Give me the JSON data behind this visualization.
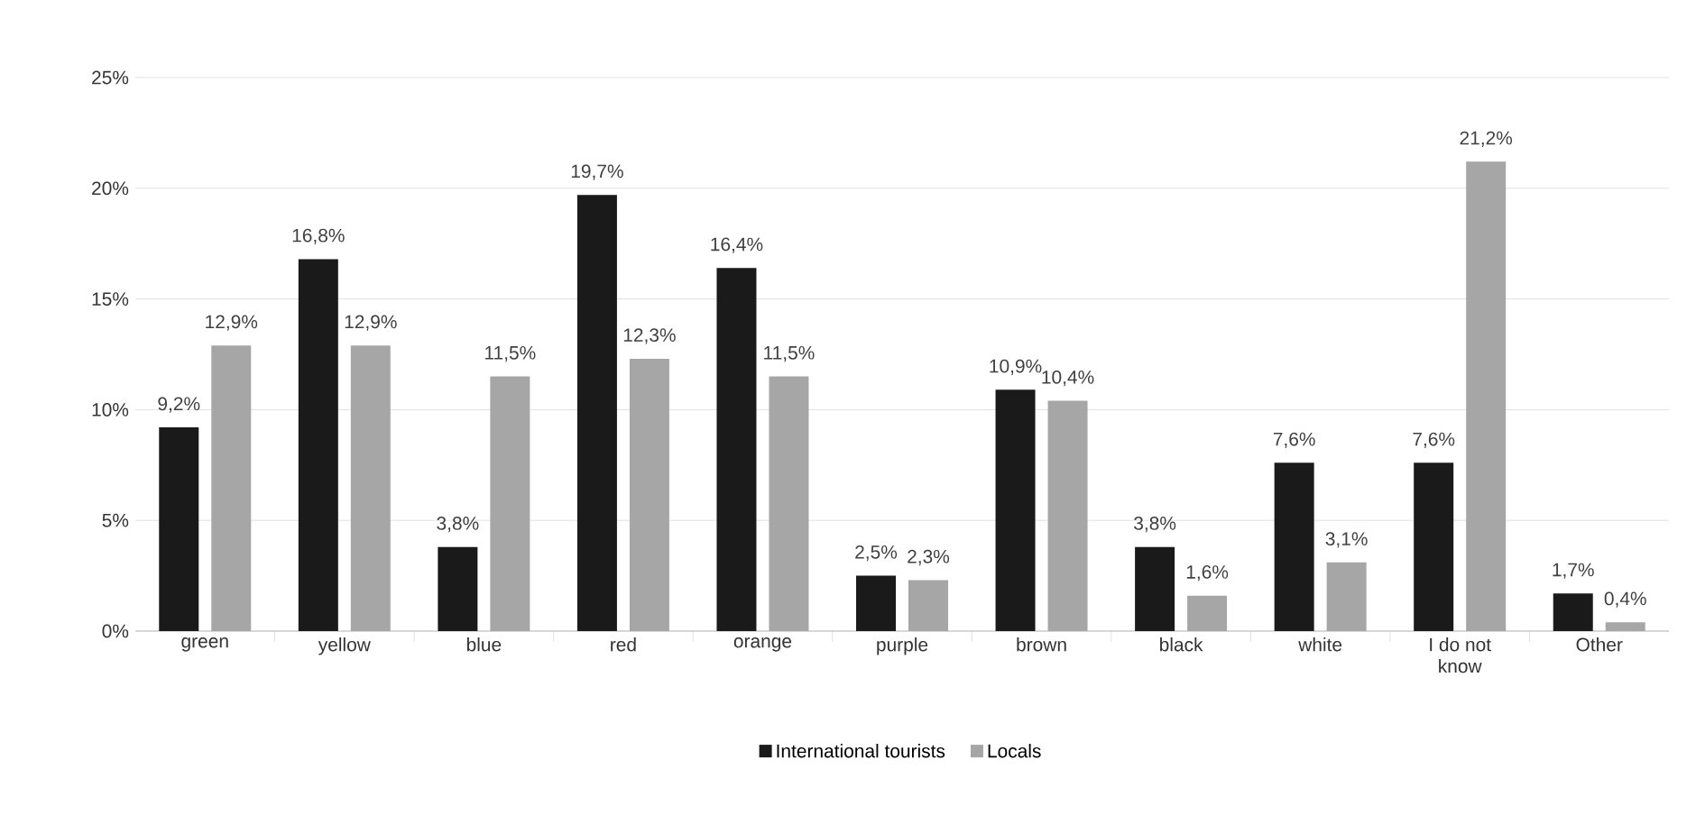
{
  "chart_data": {
    "type": "bar",
    "categories": [
      "green",
      "yellow",
      "blue",
      "red",
      "orange",
      "purple",
      "brown",
      "black",
      "white",
      "I do not know",
      "Other"
    ],
    "series": [
      {
        "name": "International tourists",
        "color": "#1a1a1a",
        "values": [
          9.2,
          16.8,
          3.8,
          19.7,
          16.4,
          2.5,
          10.9,
          3.8,
          7.6,
          7.6,
          1.7
        ],
        "value_labels": [
          "9,2%",
          "16,8%",
          "3,8%",
          "19,7%",
          "16,4%",
          "2,5%",
          "10,9%",
          "3,8%",
          "7,6%",
          "7,6%",
          "1,7%"
        ]
      },
      {
        "name": "Locals",
        "color": "#a6a6a6",
        "values": [
          12.9,
          12.9,
          11.5,
          12.3,
          11.5,
          2.3,
          10.4,
          1.6,
          3.1,
          21.2,
          0.4
        ],
        "value_labels": [
          "12,9%",
          "12,9%",
          "11,5%",
          "12,3%",
          "11,5%",
          "2,3%",
          "10,4%",
          "1,6%",
          "3,1%",
          "21,2%",
          "0,4%"
        ]
      }
    ],
    "ylim": [
      0,
      25
    ],
    "yticks": [
      {
        "value": 0,
        "label": "0%"
      },
      {
        "value": 5,
        "label": "5%"
      },
      {
        "value": 10,
        "label": "10%"
      },
      {
        "value": 15,
        "label": "15%"
      },
      {
        "value": 20,
        "label": "20%"
      },
      {
        "value": 25,
        "label": "25%"
      }
    ],
    "grid": "y",
    "legend": "bottom"
  }
}
